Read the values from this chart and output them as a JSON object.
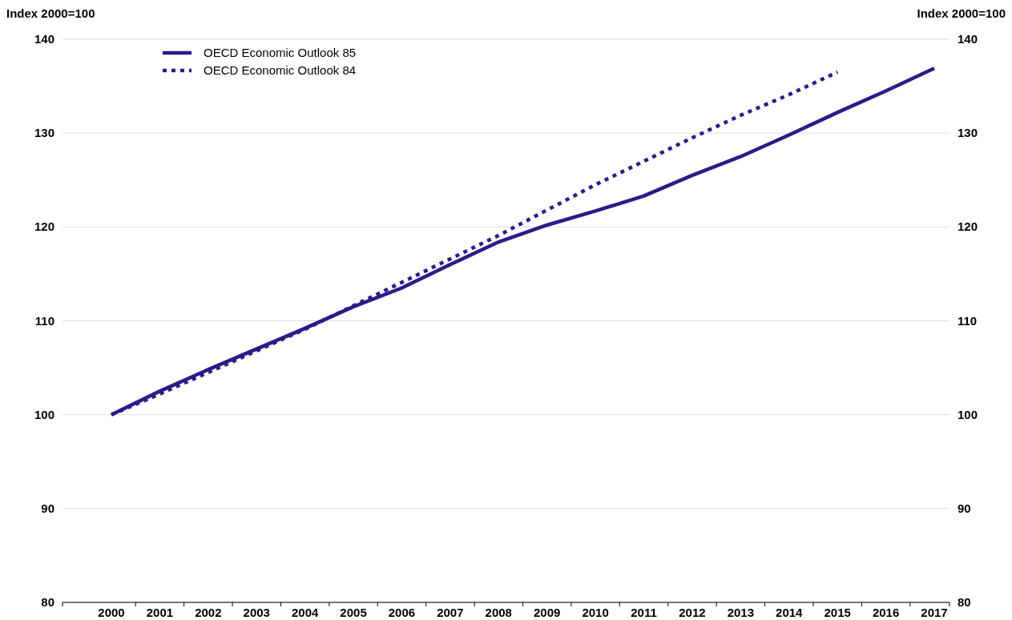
{
  "chart_data": {
    "type": "line",
    "ylabel": "Index 2000=100",
    "y2label": "Index 2000=100",
    "categories": [
      "2000",
      "2001",
      "2002",
      "2003",
      "2004",
      "2005",
      "2006",
      "2007",
      "2008",
      "2009",
      "2010",
      "2011",
      "2012",
      "2013",
      "2014",
      "2015",
      "2016",
      "2017"
    ],
    "series": [
      {
        "name": "OECD Economic Outlook 85",
        "color": "#2e1a87",
        "line_style": "solid",
        "values": [
          100,
          102.5,
          104.8,
          107.0,
          109.2,
          111.5,
          113.5,
          116.0,
          118.4,
          120.2,
          121.7,
          123.3,
          125.5,
          127.5,
          129.8,
          132.2,
          134.5,
          136.9
        ]
      },
      {
        "name": "OECD Economic Outlook 84",
        "color": "#2e1a87",
        "line_style": "dotted",
        "values": [
          100,
          102.2,
          104.5,
          106.8,
          109.1,
          111.6,
          114.1,
          116.6,
          119.1,
          121.8,
          124.5,
          127.0,
          129.5,
          131.9,
          134.1,
          136.5,
          null,
          null
        ]
      }
    ],
    "ylim": [
      80,
      140
    ],
    "yticks": [
      80,
      90,
      100,
      110,
      120,
      130,
      140
    ],
    "y2lim": [
      80,
      140
    ],
    "y2ticks": [
      80,
      90,
      100,
      110,
      120,
      130,
      140
    ],
    "grid": "y",
    "legend": "top left"
  }
}
